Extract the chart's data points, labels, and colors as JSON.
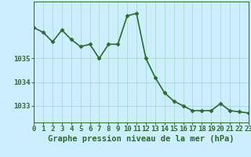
{
  "x": [
    0,
    1,
    2,
    3,
    4,
    5,
    6,
    7,
    8,
    9,
    10,
    11,
    12,
    13,
    14,
    15,
    16,
    17,
    18,
    19,
    20,
    21,
    22,
    23
  ],
  "y": [
    1036.3,
    1036.1,
    1035.7,
    1036.2,
    1035.8,
    1035.5,
    1035.6,
    1035.0,
    1035.6,
    1035.6,
    1036.8,
    1036.9,
    1035.0,
    1034.2,
    1033.55,
    1033.2,
    1033.0,
    1032.8,
    1032.8,
    1032.8,
    1033.1,
    1032.8,
    1032.75,
    1032.7
  ],
  "line_color": "#2d6a2d",
  "marker": "D",
  "marker_size": 2.5,
  "line_width": 1.2,
  "background_color": "#cceeff",
  "grid_color": "#aaddcc",
  "xlabel": "Graphe pression niveau de la mer (hPa)",
  "xlabel_fontsize": 7.5,
  "tick_label_fontsize": 6.5,
  "ytick_labels": [
    "1033",
    "1034",
    "1035"
  ],
  "ytick_values": [
    1033,
    1034,
    1035
  ],
  "ylim": [
    1032.3,
    1037.4
  ],
  "xlim": [
    0,
    23
  ],
  "xtick_values": [
    0,
    1,
    2,
    3,
    4,
    5,
    6,
    7,
    8,
    9,
    10,
    11,
    12,
    13,
    14,
    15,
    16,
    17,
    18,
    19,
    20,
    21,
    22,
    23
  ]
}
